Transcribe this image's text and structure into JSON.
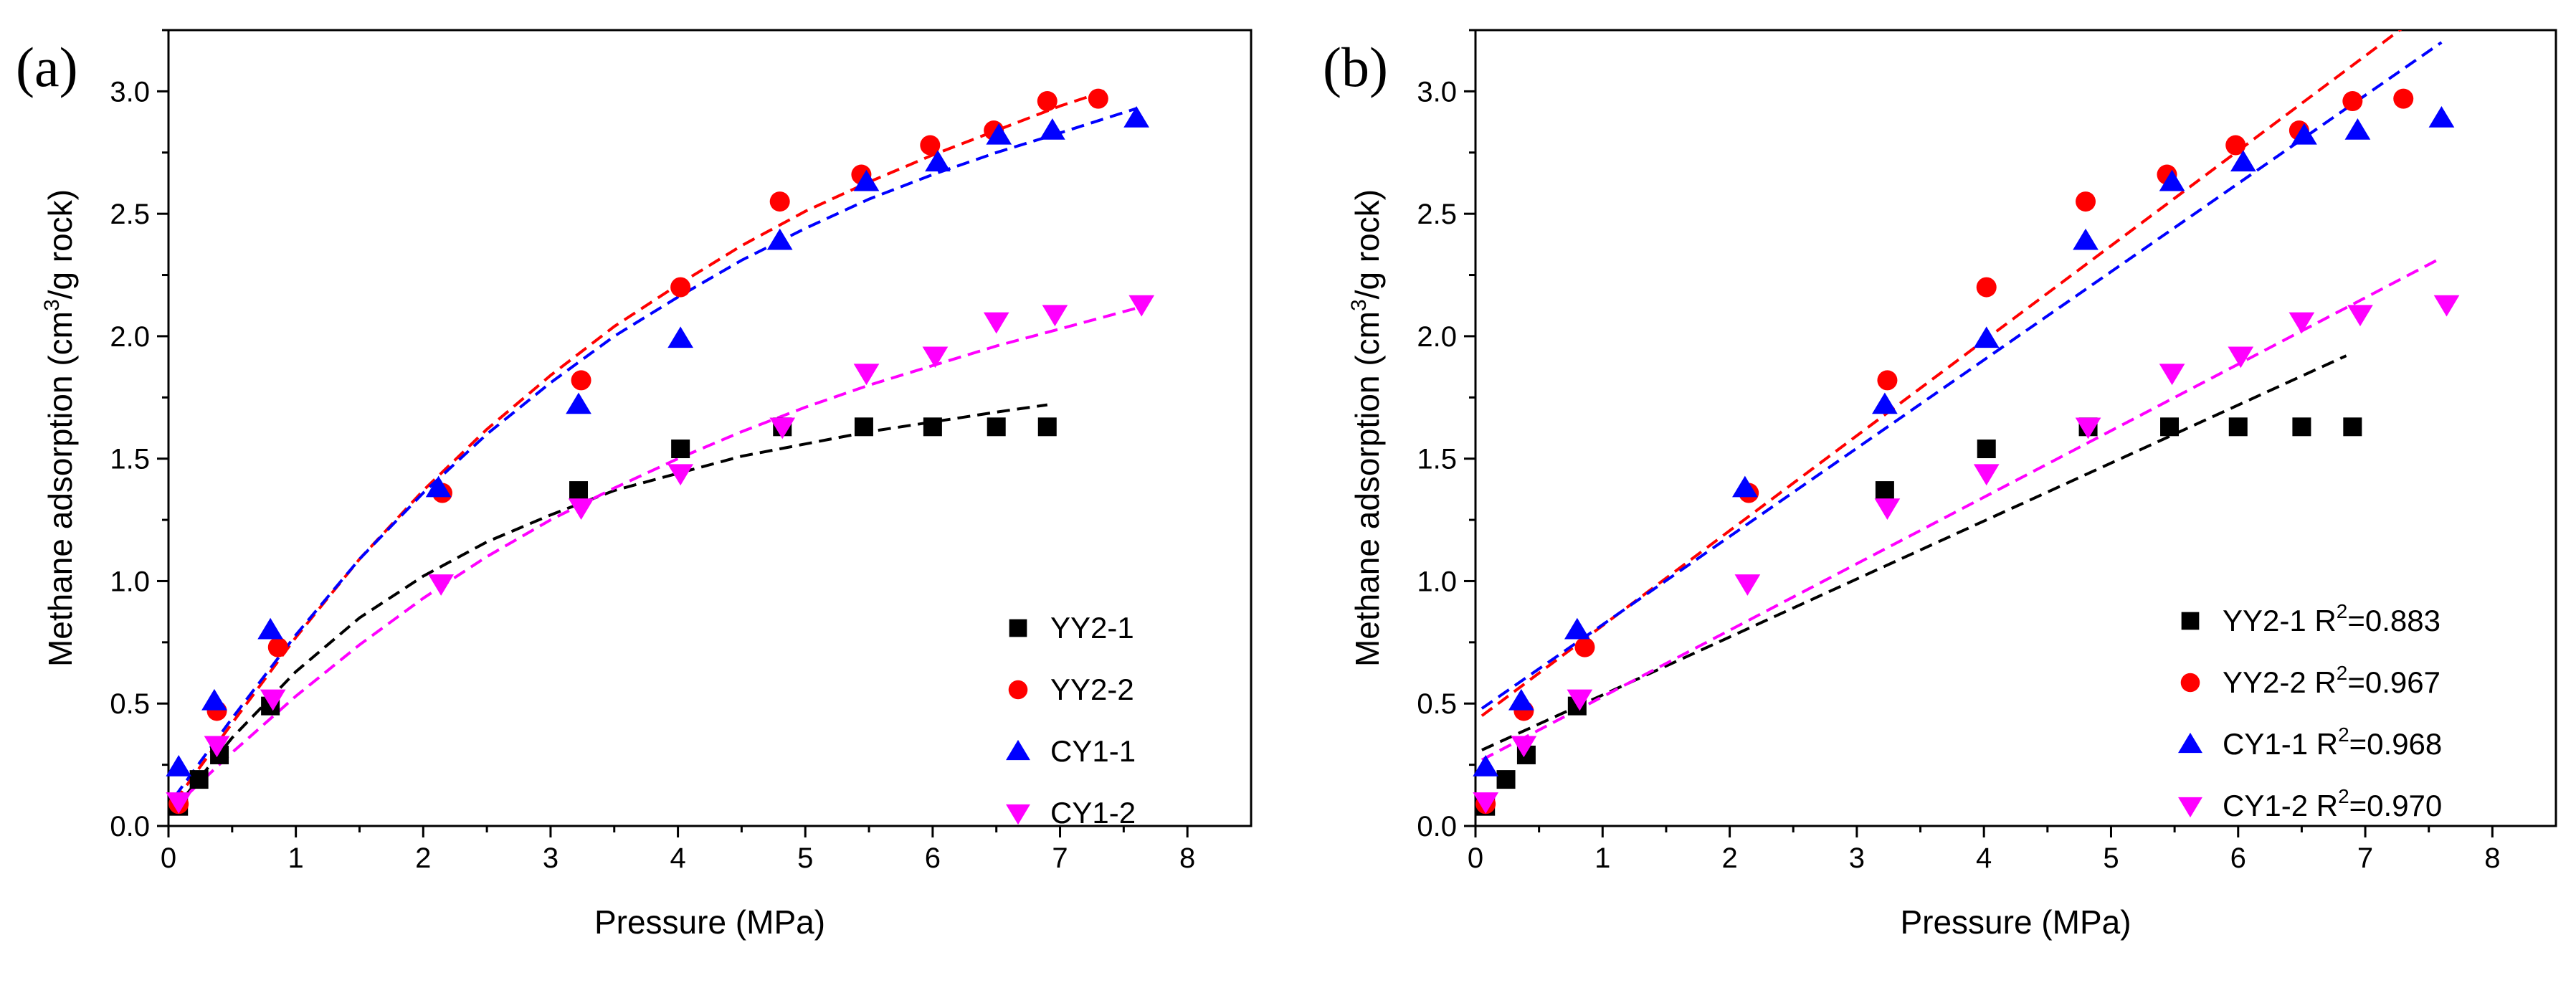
{
  "colors": {
    "YY2-1": "#000000",
    "YY2-2": "#ff0000",
    "CY1-1": "#0000ff",
    "CY1-2": "#ff00ff"
  },
  "markers": {
    "YY2-1": "square",
    "YY2-2": "circle",
    "CY1-1": "triangle-up",
    "CY1-2": "triangle-down"
  },
  "chart_data": [
    {
      "panel_label": "(a)",
      "type": "scatter",
      "title": "",
      "xlabel": "Pressure (MPa)",
      "ylabel_main": "Methane adsorption (cm",
      "ylabel_sup": "3",
      "ylabel_end": "/g rock)",
      "xlim": [
        0,
        8.5
      ],
      "ylim": [
        0,
        3.25
      ],
      "xticks": [
        0,
        1,
        2,
        3,
        4,
        5,
        6,
        7,
        8
      ],
      "yticks": [
        0.0,
        0.5,
        1.0,
        1.5,
        2.0,
        2.5,
        3.0
      ],
      "xtick_labels": [
        "0",
        "1",
        "2",
        "3",
        "4",
        "5",
        "6",
        "7",
        "8"
      ],
      "ytick_labels": [
        "0.0",
        "0.5",
        "1.0",
        "1.5",
        "2.0",
        "2.5",
        "3.0"
      ],
      "legend_position": "bottom-right",
      "series": [
        {
          "name": "YY2-1",
          "legend": "YY2-1",
          "r2": "",
          "x": [
            0.08,
            0.24,
            0.4,
            0.8,
            3.22,
            4.02,
            4.82,
            5.46,
            6.0,
            6.5,
            6.9
          ],
          "y": [
            0.08,
            0.19,
            0.29,
            0.49,
            1.37,
            1.54,
            1.63,
            1.63,
            1.63,
            1.63,
            1.63
          ],
          "fit": [
            [
              0.05,
              0.07
            ],
            [
              0.5,
              0.36
            ],
            [
              1,
              0.63
            ],
            [
              1.5,
              0.85
            ],
            [
              2,
              1.02
            ],
            [
              2.5,
              1.16
            ],
            [
              3,
              1.27
            ],
            [
              3.5,
              1.37
            ],
            [
              4,
              1.44
            ],
            [
              4.5,
              1.51
            ],
            [
              5,
              1.56
            ],
            [
              5.5,
              1.61
            ],
            [
              6,
              1.65
            ],
            [
              6.5,
              1.69
            ],
            [
              6.9,
              1.72
            ]
          ]
        },
        {
          "name": "YY2-2",
          "legend": "YY2-2",
          "r2": "",
          "x": [
            0.08,
            0.38,
            0.86,
            2.15,
            3.24,
            4.02,
            4.8,
            5.44,
            5.98,
            6.48,
            6.9,
            7.3
          ],
          "y": [
            0.09,
            0.47,
            0.73,
            1.36,
            1.82,
            2.2,
            2.55,
            2.66,
            2.78,
            2.84,
            2.96,
            2.97
          ],
          "fit": [
            [
              0.05,
              0.1
            ],
            [
              0.5,
              0.42
            ],
            [
              1,
              0.77
            ],
            [
              1.5,
              1.09
            ],
            [
              2,
              1.37
            ],
            [
              2.5,
              1.62
            ],
            [
              3,
              1.84
            ],
            [
              3.5,
              2.04
            ],
            [
              4,
              2.21
            ],
            [
              4.5,
              2.37
            ],
            [
              5,
              2.51
            ],
            [
              5.5,
              2.63
            ],
            [
              6,
              2.74
            ],
            [
              6.5,
              2.84
            ],
            [
              7,
              2.94
            ],
            [
              7.35,
              3.0
            ]
          ]
        },
        {
          "name": "CY1-1",
          "legend": "CY1-1",
          "r2": "",
          "x": [
            0.08,
            0.36,
            0.8,
            2.12,
            3.22,
            4.02,
            4.8,
            5.48,
            6.04,
            6.52,
            6.94,
            7.6
          ],
          "y": [
            0.24,
            0.51,
            0.8,
            1.38,
            1.72,
            1.99,
            2.39,
            2.63,
            2.71,
            2.82,
            2.84,
            2.89
          ],
          "fit": [
            [
              0.05,
              0.12
            ],
            [
              0.5,
              0.44
            ],
            [
              1,
              0.78
            ],
            [
              1.5,
              1.09
            ],
            [
              2,
              1.36
            ],
            [
              2.5,
              1.6
            ],
            [
              3,
              1.81
            ],
            [
              3.5,
              2.0
            ],
            [
              4,
              2.16
            ],
            [
              4.5,
              2.31
            ],
            [
              5,
              2.44
            ],
            [
              5.5,
              2.56
            ],
            [
              6,
              2.66
            ],
            [
              6.5,
              2.75
            ],
            [
              7,
              2.83
            ],
            [
              7.6,
              2.93
            ]
          ]
        },
        {
          "name": "CY1-2",
          "legend": "CY1-2",
          "r2": "",
          "x": [
            0.08,
            0.38,
            0.82,
            2.14,
            3.24,
            4.02,
            4.82,
            5.48,
            6.02,
            6.5,
            6.96,
            7.64
          ],
          "y": [
            0.1,
            0.33,
            0.52,
            0.99,
            1.3,
            1.44,
            1.63,
            1.85,
            1.92,
            2.06,
            2.09,
            2.13
          ],
          "fit": [
            [
              0.05,
              0.08
            ],
            [
              0.5,
              0.3
            ],
            [
              1,
              0.53
            ],
            [
              1.5,
              0.74
            ],
            [
              2,
              0.93
            ],
            [
              2.5,
              1.1
            ],
            [
              3,
              1.25
            ],
            [
              3.5,
              1.38
            ],
            [
              4,
              1.5
            ],
            [
              4.5,
              1.61
            ],
            [
              5,
              1.71
            ],
            [
              5.5,
              1.8
            ],
            [
              6,
              1.88
            ],
            [
              6.5,
              1.96
            ],
            [
              7,
              2.03
            ],
            [
              7.64,
              2.12
            ]
          ]
        }
      ]
    },
    {
      "panel_label": "(b)",
      "type": "scatter",
      "title": "",
      "xlabel": "Pressure (MPa)",
      "ylabel_main": "Methane adsorption (cm",
      "ylabel_sup": "3",
      "ylabel_end": "/g rock)",
      "xlim": [
        0,
        8.5
      ],
      "ylim": [
        0,
        3.25
      ],
      "xticks": [
        0,
        1,
        2,
        3,
        4,
        5,
        6,
        7,
        8
      ],
      "yticks": [
        0.0,
        0.5,
        1.0,
        1.5,
        2.0,
        2.5,
        3.0
      ],
      "xtick_labels": [
        "0",
        "1",
        "2",
        "3",
        "4",
        "5",
        "6",
        "7",
        "8"
      ],
      "ytick_labels": [
        "0.0",
        "0.5",
        "1.0",
        "1.5",
        "2.0",
        "2.5",
        "3.0"
      ],
      "legend_position": "bottom-right",
      "series": [
        {
          "name": "YY2-1",
          "legend": "YY2-1 R",
          "r2": "2",
          "r2_value": "=0.883",
          "x": [
            0.08,
            0.24,
            0.4,
            0.8,
            3.22,
            4.02,
            4.82,
            5.46,
            6.0,
            6.5,
            6.9
          ],
          "y": [
            0.08,
            0.19,
            0.29,
            0.49,
            1.37,
            1.54,
            1.63,
            1.63,
            1.63,
            1.63,
            1.63
          ],
          "fit": [
            [
              0.05,
              0.31
            ],
            [
              6.85,
              1.92
            ]
          ]
        },
        {
          "name": "YY2-2",
          "legend": "YY2-2 R",
          "r2": "2",
          "r2_value": "=0.967",
          "x": [
            0.08,
            0.38,
            0.86,
            2.15,
            3.24,
            4.02,
            4.8,
            5.44,
            5.98,
            6.48,
            6.9,
            7.3
          ],
          "y": [
            0.09,
            0.47,
            0.73,
            1.36,
            1.82,
            2.2,
            2.55,
            2.66,
            2.78,
            2.84,
            2.96,
            2.97
          ],
          "fit": [
            [
              0.05,
              0.45
            ],
            [
              7.4,
              3.3
            ]
          ]
        },
        {
          "name": "CY1-1",
          "legend": "CY1-1 R",
          "r2": "2",
          "r2_value": "=0.968",
          "x": [
            0.08,
            0.36,
            0.8,
            2.12,
            3.22,
            4.02,
            4.8,
            5.48,
            6.04,
            6.52,
            6.94,
            7.6
          ],
          "y": [
            0.24,
            0.51,
            0.8,
            1.38,
            1.72,
            1.99,
            2.39,
            2.63,
            2.71,
            2.82,
            2.84,
            2.89
          ],
          "fit": [
            [
              0.05,
              0.48
            ],
            [
              7.6,
              3.2
            ]
          ]
        },
        {
          "name": "CY1-2",
          "legend": "CY1-2 R",
          "r2": "2",
          "r2_value": "=0.970",
          "x": [
            0.08,
            0.38,
            0.82,
            2.14,
            3.24,
            4.02,
            4.82,
            5.48,
            6.02,
            6.5,
            6.96,
            7.64
          ],
          "y": [
            0.1,
            0.33,
            0.52,
            0.99,
            1.3,
            1.44,
            1.63,
            1.85,
            1.92,
            2.06,
            2.09,
            2.13
          ],
          "fit": [
            [
              0.05,
              0.27
            ],
            [
              7.6,
              2.32
            ]
          ]
        }
      ]
    }
  ]
}
